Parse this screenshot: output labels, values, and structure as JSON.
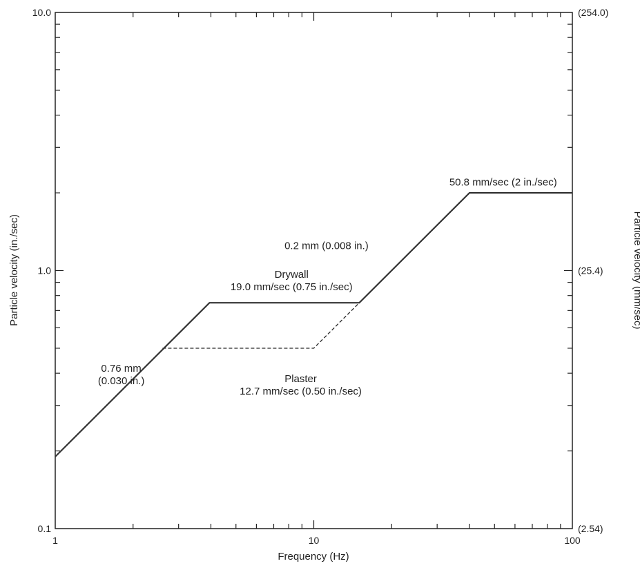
{
  "chart_data": {
    "type": "line",
    "xlabel": "Frequency (Hz)",
    "ylabel": "Particle velocity (in./sec)",
    "ylabel_right": "Particle velocity (mm/sec)",
    "xscale": "log",
    "yscale": "log",
    "xlim": [
      1,
      100
    ],
    "ylim": [
      0.1,
      10
    ],
    "x_ticks": [
      {
        "value": 1,
        "label": "1"
      },
      {
        "value": 10,
        "label": "10"
      },
      {
        "value": 100,
        "label": "100"
      }
    ],
    "y_ticks_left": [
      {
        "value": 0.1,
        "label": "0.1"
      },
      {
        "value": 1,
        "label": "1.0"
      },
      {
        "value": 10,
        "label": "10.0"
      }
    ],
    "y_ticks_right": [
      {
        "value": 0.1,
        "label": "(2.54)"
      },
      {
        "value": 1,
        "label": "(25.4)"
      },
      {
        "value": 10,
        "label": "(254.0)"
      }
    ],
    "grid": false,
    "series": [
      {
        "style": "solid",
        "x": [
          1,
          3.95,
          15,
          40,
          100
        ],
        "y": [
          0.19,
          0.75,
          0.75,
          2.0,
          2.0
        ]
      },
      {
        "style": "dashed",
        "x": [
          2.6,
          10,
          15
        ],
        "y": [
          0.5,
          0.5,
          0.75
        ]
      }
    ],
    "annotations": [
      {
        "lines": [
          "0.76 mm",
          "(0.030 in.)"
        ],
        "x": 1.8,
        "y": 0.395
      },
      {
        "lines": [
          "Drywall",
          "19.0 mm/sec (0.75 in./sec)"
        ],
        "x": 8.2,
        "y": 0.915
      },
      {
        "lines": [
          "Plaster",
          "12.7 mm/sec (0.50 in./sec)"
        ],
        "x": 8.9,
        "y": 0.36
      },
      {
        "lines": [
          "0.2 mm (0.008 in.)"
        ],
        "x": 11.2,
        "y": 1.25
      },
      {
        "lines": [
          "50.8 mm/sec (2 in./sec)"
        ],
        "x": 54,
        "y": 2.2
      }
    ]
  }
}
